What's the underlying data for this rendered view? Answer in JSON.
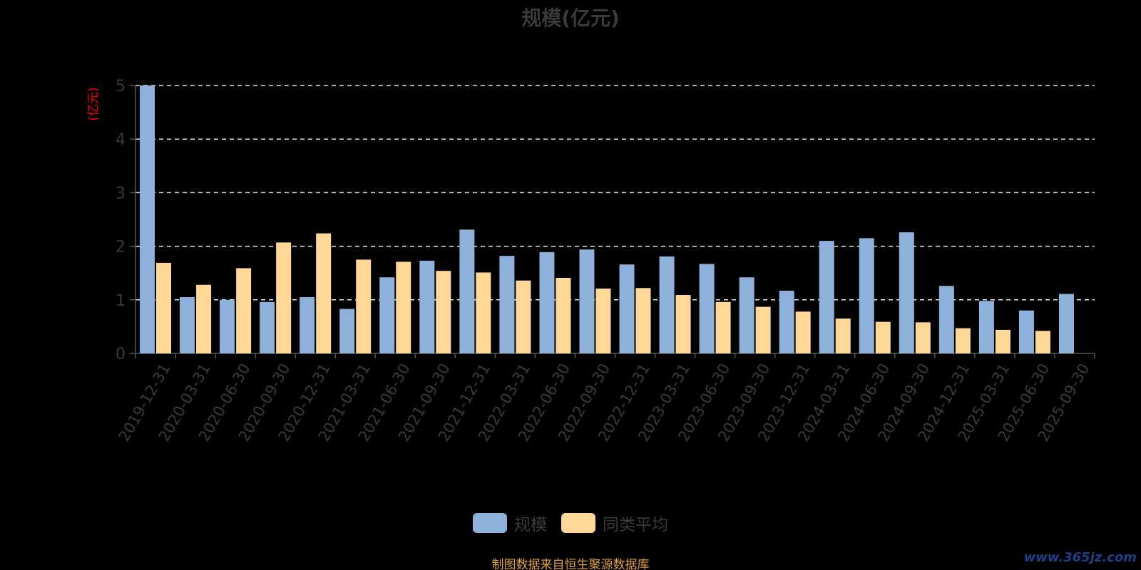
{
  "chart_data": {
    "type": "bar",
    "title": "规模(亿元)",
    "ylabel": "(亿元)",
    "xlabel": "",
    "ylim": [
      0,
      5
    ],
    "y_ticks": [
      0,
      1,
      2,
      3,
      4,
      5
    ],
    "grid": true,
    "legend_position": "bottom",
    "categories": [
      "2019-12-31",
      "2020-03-31",
      "2020-06-30",
      "2020-09-30",
      "2020-12-31",
      "2021-03-31",
      "2021-06-30",
      "2021-09-30",
      "2021-12-31",
      "2022-03-31",
      "2022-06-30",
      "2022-09-30",
      "2022-12-31",
      "2023-03-31",
      "2023-06-30",
      "2023-09-30",
      "2023-12-31",
      "2024-03-31",
      "2024-06-30",
      "2024-09-30",
      "2024-12-31",
      "2025-03-31",
      "2025-06-30",
      "2025-09-30"
    ],
    "series": [
      {
        "name": "规模",
        "color": "#8eb1dc",
        "values": [
          5.0,
          1.05,
          1.0,
          0.96,
          1.05,
          0.83,
          1.42,
          1.73,
          2.31,
          1.82,
          1.89,
          1.94,
          1.66,
          1.81,
          1.67,
          1.42,
          1.17,
          2.1,
          2.15,
          2.26,
          1.26,
          0.98,
          0.8,
          1.11
        ]
      },
      {
        "name": "同类平均",
        "color": "#ffd898",
        "values": [
          1.69,
          1.28,
          1.59,
          2.07,
          2.24,
          1.75,
          1.71,
          1.54,
          1.51,
          1.36,
          1.41,
          1.21,
          1.22,
          1.09,
          0.96,
          0.87,
          0.78,
          0.65,
          0.59,
          0.58,
          0.47,
          0.44,
          0.42,
          null
        ]
      }
    ]
  },
  "footer": {
    "source_note": "制图数据来自恒生聚源数据库",
    "watermark": "www.365jz.com"
  }
}
